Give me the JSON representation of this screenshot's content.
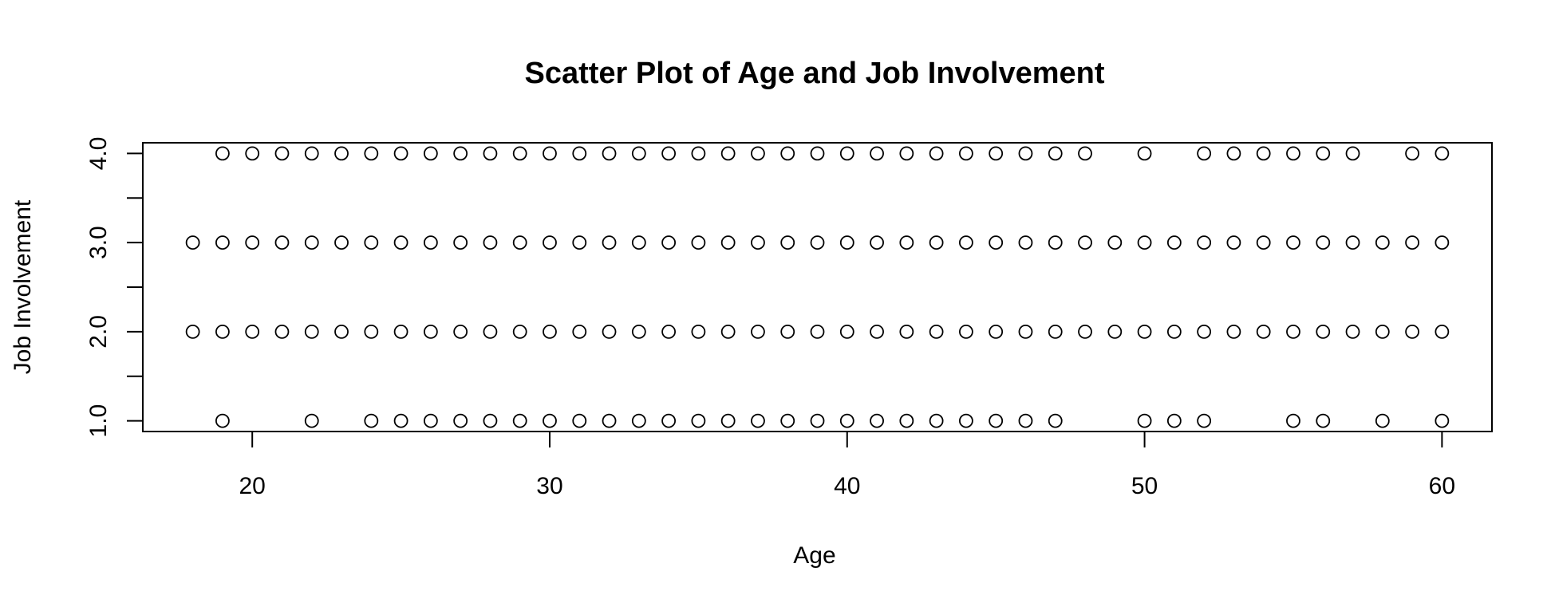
{
  "chart_data": {
    "type": "scatter",
    "title": "Scatter Plot of Age and Job Involvement",
    "xlabel": "Age",
    "ylabel": "Job Involvement",
    "xlim": [
      16.32,
      61.68
    ],
    "ylim": [
      0.88,
      4.12
    ],
    "x_ticks": [
      20,
      30,
      40,
      50,
      60
    ],
    "x_tick_labels": [
      "20",
      "30",
      "40",
      "50",
      "60"
    ],
    "y_ticks": [
      1,
      1.5,
      2,
      2.5,
      3,
      3.5,
      4
    ],
    "y_tick_labels": [
      "1.0",
      "",
      "2.0",
      "",
      "3.0",
      "",
      "4.0"
    ],
    "grid": false,
    "legend": "none",
    "point_style": "open-circle",
    "series": [
      {
        "y": 4,
        "x": [
          19,
          20,
          21,
          22,
          23,
          24,
          25,
          26,
          27,
          28,
          29,
          30,
          31,
          32,
          33,
          34,
          35,
          36,
          37,
          38,
          39,
          40,
          41,
          42,
          43,
          44,
          45,
          46,
          47,
          48,
          50,
          52,
          53,
          54,
          55,
          56,
          57,
          59,
          60
        ]
      },
      {
        "y": 3,
        "x": [
          18,
          19,
          20,
          21,
          22,
          23,
          24,
          25,
          26,
          27,
          28,
          29,
          30,
          31,
          32,
          33,
          34,
          35,
          36,
          37,
          38,
          39,
          40,
          41,
          42,
          43,
          44,
          45,
          46,
          47,
          48,
          49,
          50,
          51,
          52,
          53,
          54,
          55,
          56,
          57,
          58,
          59,
          60
        ]
      },
      {
        "y": 2,
        "x": [
          18,
          19,
          20,
          21,
          22,
          23,
          24,
          25,
          26,
          27,
          28,
          29,
          30,
          31,
          32,
          33,
          34,
          35,
          36,
          37,
          38,
          39,
          40,
          41,
          42,
          43,
          44,
          45,
          46,
          47,
          48,
          49,
          50,
          51,
          52,
          53,
          54,
          55,
          56,
          57,
          58,
          59,
          60
        ]
      },
      {
        "y": 1,
        "x": [
          19,
          22,
          24,
          25,
          26,
          27,
          28,
          29,
          30,
          31,
          32,
          33,
          34,
          35,
          36,
          37,
          38,
          39,
          40,
          41,
          42,
          43,
          44,
          45,
          46,
          47,
          50,
          51,
          52,
          55,
          56,
          58,
          60
        ]
      }
    ]
  }
}
